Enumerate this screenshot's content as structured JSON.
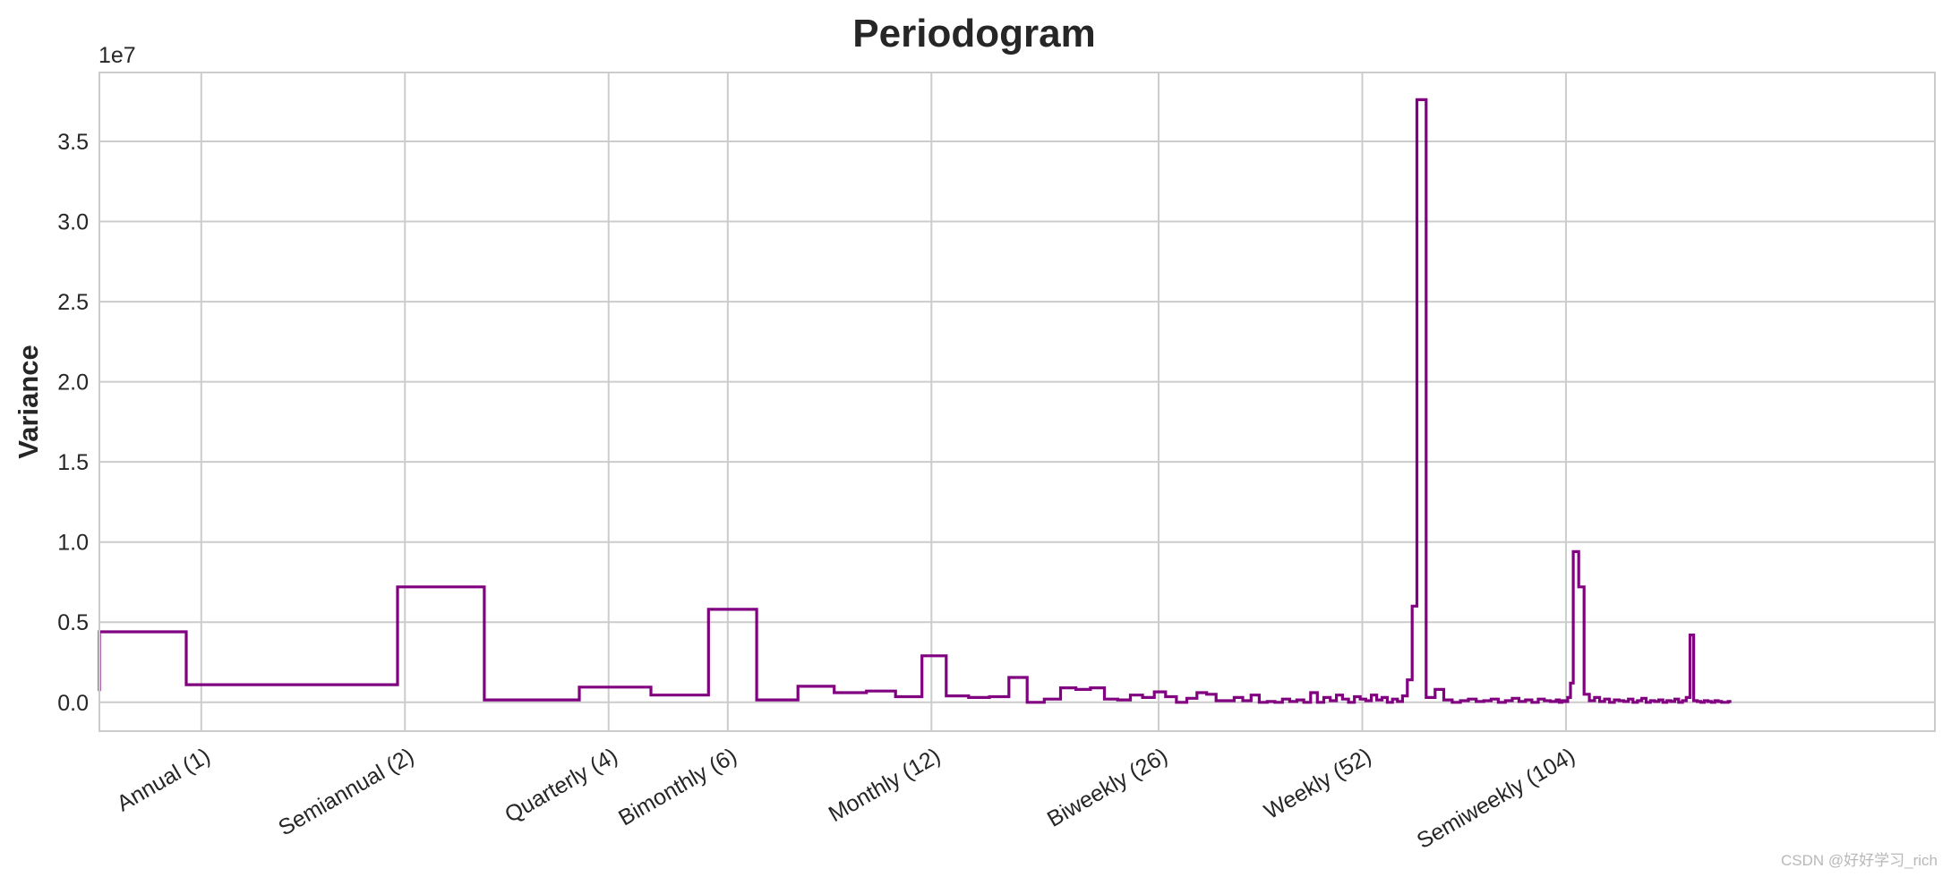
{
  "chart_data": {
    "type": "line",
    "title": "Periodogram",
    "ylabel": "Variance",
    "xlabel": "",
    "y_scale_label": "1e7",
    "y_unit": 10000000,
    "x_scale": "log",
    "xlim": [
      0.707,
      365
    ],
    "ylim": [
      -0.18,
      3.93
    ],
    "grid": true,
    "line_color": "#800080",
    "grid_color": "#cccccc",
    "x_ticks": [
      {
        "value": 1,
        "label": "Annual (1)"
      },
      {
        "value": 2,
        "label": "Semiannual (2)"
      },
      {
        "value": 4,
        "label": "Quarterly (4)"
      },
      {
        "value": 6,
        "label": "Bimonthly (6)"
      },
      {
        "value": 12,
        "label": "Monthly (12)"
      },
      {
        "value": 26,
        "label": "Biweekly (26)"
      },
      {
        "value": 52,
        "label": "Weekly (52)"
      },
      {
        "value": 104,
        "label": "Semiweekly (104)"
      }
    ],
    "y_ticks": [
      0.0,
      0.5,
      1.0,
      1.5,
      2.0,
      2.5,
      3.0,
      3.5
    ],
    "y_tick_labels": [
      "0.0",
      "0.5",
      "1.0",
      "1.5",
      "2.0",
      "2.5",
      "3.0",
      "3.5"
    ],
    "series": [
      {
        "style": "steps-pre",
        "x": [
          0.707,
          0.95,
          1.95,
          2.62,
          3.62,
          4.62,
          5.62,
          6.62,
          7.62,
          8.62,
          9.62,
          10.62,
          11.62,
          12.62,
          13.62,
          14.62,
          15.62,
          16.62,
          17.62,
          18.62,
          19.62,
          20.62,
          21.62,
          22.62,
          23.62,
          24.62,
          25.62,
          26.62,
          27.62,
          28.62,
          29.62,
          30.62,
          31.62,
          32.62,
          33.62,
          34.62,
          35.62,
          36.62,
          37.62,
          38.62,
          39.62,
          40.62,
          41.62,
          42.62,
          43.62,
          44.62,
          45.62,
          46.62,
          47.62,
          48.62,
          49.62,
          50.62,
          51.62,
          52.62,
          53.62,
          54.62,
          55.62,
          56.62,
          57.62,
          58.62,
          59.62,
          60.62,
          61.62,
          62.62,
          64.62,
          66.62,
          68.62,
          70.62,
          72.62,
          74.62,
          76.62,
          78.62,
          80.62,
          82.62,
          84.62,
          86.62,
          88.62,
          90.62,
          92.62,
          94.62,
          96.62,
          98.62,
          100.62,
          101.62,
          102.62,
          103.62,
          104.62,
          105.62,
          106.62,
          108.62,
          110.62,
          112.62,
          114.62,
          116.62,
          118.62,
          120.62,
          122.62,
          124.62,
          126.62,
          128.62,
          130.62,
          132.62,
          134.62,
          136.62,
          138.62,
          140.62,
          142.62,
          144.62,
          146.62,
          148.62,
          150.62,
          152.62,
          154.62,
          156.62,
          158.62,
          160.62,
          162.62,
          164.62,
          166.62,
          168.62,
          170.62,
          172.62,
          174.62,
          176.62,
          178.62,
          180.62,
          182.62
        ],
        "values": [
          0.07,
          0.44,
          0.11,
          0.72,
          0.015,
          0.095,
          0.045,
          0.58,
          0.015,
          0.1,
          0.06,
          0.07,
          0.035,
          0.29,
          0.04,
          0.03,
          0.035,
          0.155,
          0.0,
          0.02,
          0.09,
          0.08,
          0.09,
          0.02,
          0.015,
          0.045,
          0.03,
          0.065,
          0.035,
          0.0,
          0.025,
          0.06,
          0.05,
          0.01,
          0.01,
          0.03,
          0.01,
          0.045,
          0.0,
          0.005,
          0.0,
          0.02,
          0.005,
          0.015,
          0.0,
          0.06,
          0.0,
          0.03,
          0.01,
          0.045,
          0.02,
          0.0,
          0.035,
          0.02,
          0.01,
          0.045,
          0.015,
          0.03,
          0.0,
          0.02,
          0.005,
          0.04,
          0.14,
          0.6,
          3.76,
          0.03,
          0.08,
          0.015,
          0.0,
          0.01,
          0.02,
          0.005,
          0.01,
          0.02,
          0.0,
          0.01,
          0.025,
          0.005,
          0.015,
          0.0,
          0.02,
          0.01,
          0.005,
          0.015,
          0.0,
          0.01,
          0.005,
          0.03,
          0.12,
          0.94,
          0.72,
          0.05,
          0.01,
          0.03,
          0.005,
          0.02,
          0.0,
          0.015,
          0.01,
          0.005,
          0.02,
          0.0,
          0.01,
          0.025,
          0.0,
          0.01,
          0.005,
          0.015,
          0.0,
          0.01,
          0.005,
          0.02,
          0.0,
          0.01,
          0.03,
          0.42,
          0.01,
          0.005,
          0.0,
          0.01,
          0.005,
          0.0,
          0.01,
          0.005,
          0.0,
          0.0,
          0.005
        ]
      }
    ]
  },
  "watermark": "CSDN @好好学习_rich"
}
